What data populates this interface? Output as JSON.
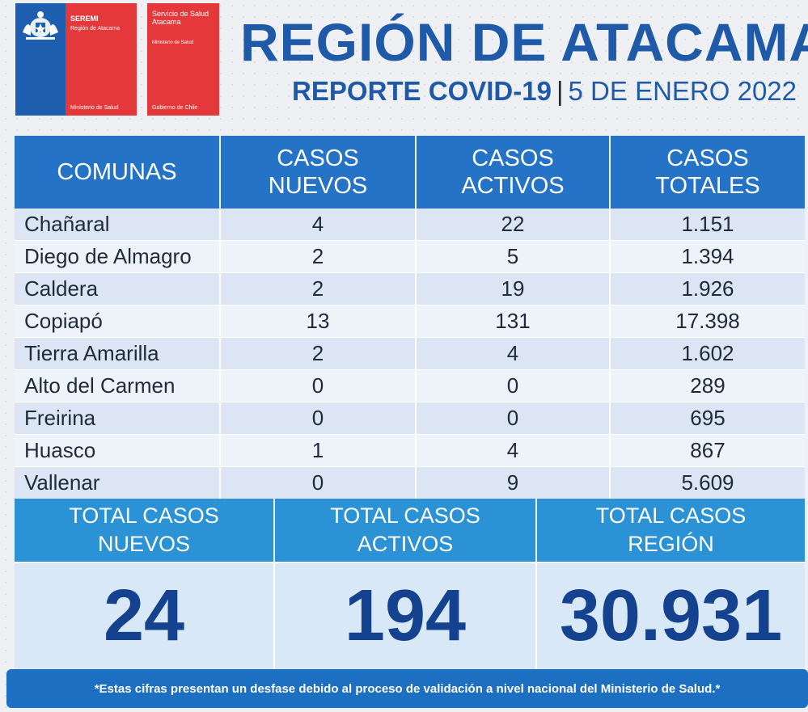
{
  "logos": {
    "seremi": {
      "title": "SEREMI",
      "subtitle": "Región de Atacama",
      "footer": "Ministerio de Salud"
    },
    "servicio": {
      "title": "Servicio de Salud Atacama",
      "subtitle": "Ministerio de Salud",
      "footer": "Gobierno de Chile"
    }
  },
  "header": {
    "title": "REGIÓN DE ATACAMA",
    "report": "REPORTE COVID-19",
    "separator": "|",
    "date": "5 DE ENERO 2022"
  },
  "table": {
    "columns": [
      "COMUNAS",
      "CASOS\nNUEVOS",
      "CASOS\nACTIVOS",
      "CASOS\nTOTALES"
    ],
    "rows": [
      [
        "Chañaral",
        "4",
        "22",
        "1.151"
      ],
      [
        "Diego de Almagro",
        "2",
        "5",
        "1.394"
      ],
      [
        "Caldera",
        "2",
        "19",
        "1.926"
      ],
      [
        "Copiapó",
        "13",
        "131",
        "17.398"
      ],
      [
        "Tierra Amarilla",
        "2",
        "4",
        "1.602"
      ],
      [
        "Alto del Carmen",
        "0",
        "0",
        "289"
      ],
      [
        "Freirina",
        "0",
        "0",
        "695"
      ],
      [
        "Huasco",
        "1",
        "4",
        "867"
      ],
      [
        "Vallenar",
        "0",
        "9",
        "5.609"
      ]
    ]
  },
  "totals": {
    "labels": [
      "TOTAL CASOS\nNUEVOS",
      "TOTAL CASOS\nACTIVOS",
      "TOTAL CASOS\nREGIÓN"
    ],
    "values": [
      "24",
      "194",
      "30.931"
    ]
  },
  "footer": "*Estas cifras presentan un desfase debido al proceso de validación a nivel nacional del Ministerio de Salud.*",
  "colors": {
    "accent": "#1f5aa8",
    "header_blue": "#2473c6",
    "totals_blue": "#2b92d6",
    "logo_red": "#e5383b"
  }
}
